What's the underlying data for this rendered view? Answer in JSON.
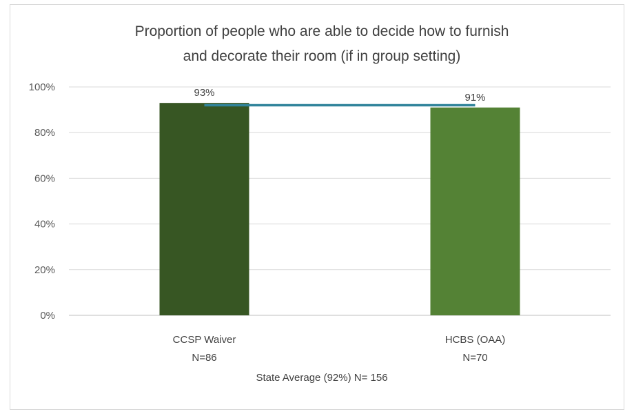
{
  "chart_data": {
    "type": "bar",
    "title": "Proportion of people who are able to decide how to furnish and decorate their room (if in group setting)",
    "title_lines": [
      "Proportion of people who are able to decide how to furnish",
      "and decorate their room (if in group setting)"
    ],
    "categories": [
      "CCSP Waiver",
      "HCBS (OAA)"
    ],
    "category_sublabels": [
      "N=86",
      "N=70"
    ],
    "values": [
      93,
      91
    ],
    "data_labels": [
      "93%",
      "91%"
    ],
    "bar_colors": [
      "#375623",
      "#548235"
    ],
    "reference_line": {
      "value": 92,
      "color": "#31849b"
    },
    "xlabel": "State Average (92%) N= 156",
    "ylabel": "",
    "ylim": [
      0,
      100
    ],
    "yticks": [
      0,
      20,
      40,
      60,
      80,
      100
    ],
    "ytick_labels": [
      "0%",
      "20%",
      "40%",
      "60%",
      "80%",
      "100%"
    ],
    "grid": true,
    "legend": "none"
  }
}
